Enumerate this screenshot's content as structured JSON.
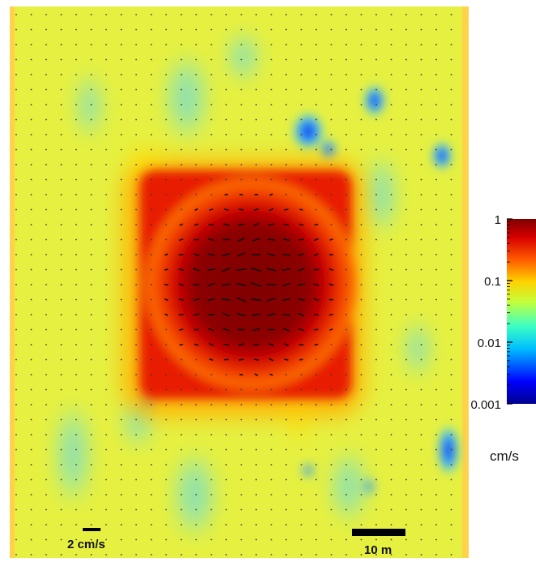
{
  "chart_data": {
    "type": "heatmap",
    "title": "",
    "xlabel": "",
    "ylabel": "",
    "colorbar": {
      "scale": "log",
      "range": [
        0.001,
        1
      ],
      "ticks": [
        "1",
        "0.1",
        "0.01",
        "0.001"
      ],
      "tick_values": [
        1,
        0.1,
        0.01,
        0.001
      ],
      "unit": "cm/s",
      "colormap": "jet"
    },
    "velocity_scale_label": "2 cm/s",
    "distance_scale_label": "10 m",
    "field": {
      "background_speed": 0.05,
      "max_speed": 1,
      "hotspot_shape": "square core with circular peak near center",
      "low_speed_spots_approx_cm_s": 0.003
    },
    "vector_field": {
      "flow_region": "inside the high-speed core",
      "dominant_direction": "left-to-right"
    },
    "colors": {
      "background": "#ffffff",
      "field_base": "#e6f040",
      "peak": "#7f0000"
    }
  }
}
